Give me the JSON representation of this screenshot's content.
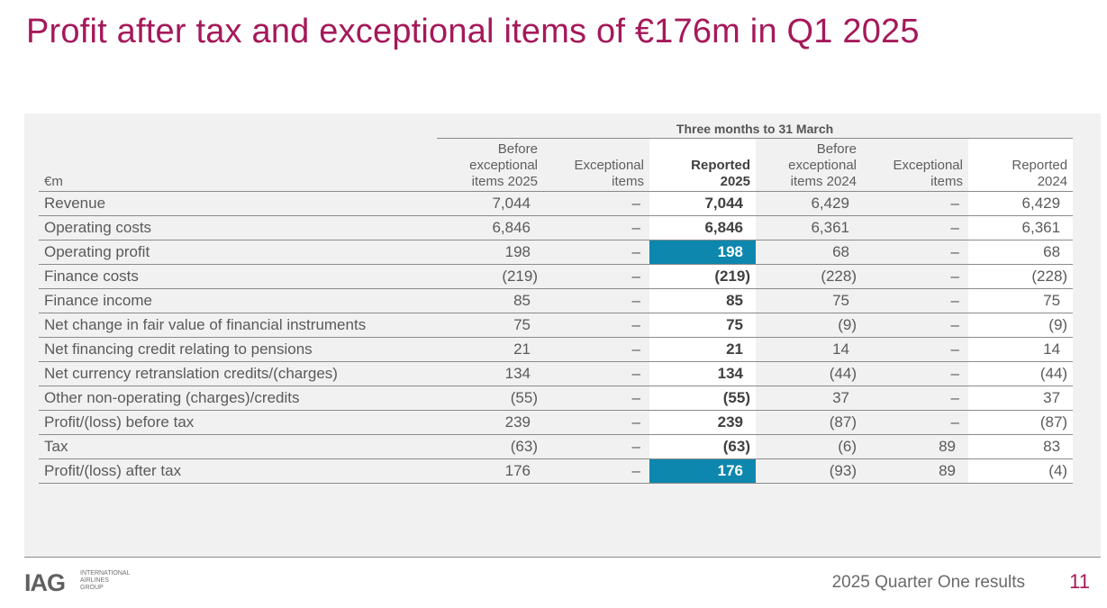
{
  "slide": {
    "title": "Profit after tax and exceptional items of €176m in Q1 2025",
    "footer_text": "2025 Quarter One results",
    "page_number": "11",
    "logo": {
      "mark": "IAG",
      "line1": "INTERNATIONAL",
      "line2": "AIRLINES",
      "line3": "GROUP"
    },
    "accent_color": "#a5195a",
    "highlight_color": "#0d87ad"
  },
  "table": {
    "period_header": "Three months to 31 March",
    "unit_label": "€m",
    "columns": [
      {
        "lines": [
          "Before",
          "exceptional",
          "items 2025"
        ]
      },
      {
        "lines": [
          "Exceptional",
          "items"
        ]
      },
      {
        "lines": [
          "Reported",
          "2025"
        ]
      },
      {
        "lines": [
          "Before",
          "exceptional",
          "items 2024"
        ]
      },
      {
        "lines": [
          "Exceptional",
          "items"
        ]
      },
      {
        "lines": [
          "Reported",
          "2024"
        ]
      }
    ],
    "rows": [
      {
        "label": "Revenue",
        "values": [
          "7,044",
          "–",
          "7,044",
          "6,429",
          "–",
          "6,429"
        ]
      },
      {
        "label": "Operating costs",
        "values": [
          "6,846",
          "–",
          "6,846",
          "6,361",
          "–",
          "6,361"
        ]
      },
      {
        "label": "Operating profit",
        "values": [
          "198",
          "–",
          "198",
          "68",
          "–",
          "68"
        ],
        "highlight": true
      },
      {
        "label": "Finance costs",
        "values": [
          "(219)",
          "–",
          "(219)",
          "(228)",
          "–",
          "(228)"
        ]
      },
      {
        "label": "Finance income",
        "values": [
          "85",
          "–",
          "85",
          "75",
          "–",
          "75"
        ]
      },
      {
        "label": "Net change in fair value of financial instruments",
        "values": [
          "75",
          "–",
          "75",
          "(9)",
          "–",
          "(9)"
        ]
      },
      {
        "label": "Net financing credit relating to pensions",
        "values": [
          "21",
          "–",
          "21",
          "14",
          "–",
          "14"
        ]
      },
      {
        "label": "Net currency retranslation credits/(charges)",
        "values": [
          "134",
          "–",
          "134",
          "(44)",
          "–",
          "(44)"
        ]
      },
      {
        "label": "Other non-operating (charges)/credits",
        "values": [
          "(55)",
          "–",
          "(55)",
          "37",
          "–",
          "37"
        ]
      },
      {
        "label": "Profit/(loss) before tax",
        "values": [
          "239",
          "–",
          "239",
          "(87)",
          "–",
          "(87)"
        ]
      },
      {
        "label": "Tax",
        "values": [
          "(63)",
          "–",
          "(63)",
          "(6)",
          "89",
          "83"
        ]
      },
      {
        "label": "Profit/(loss) after tax",
        "values": [
          "176",
          "–",
          "176",
          "(93)",
          "89",
          "(4)"
        ],
        "highlight": true
      }
    ]
  }
}
